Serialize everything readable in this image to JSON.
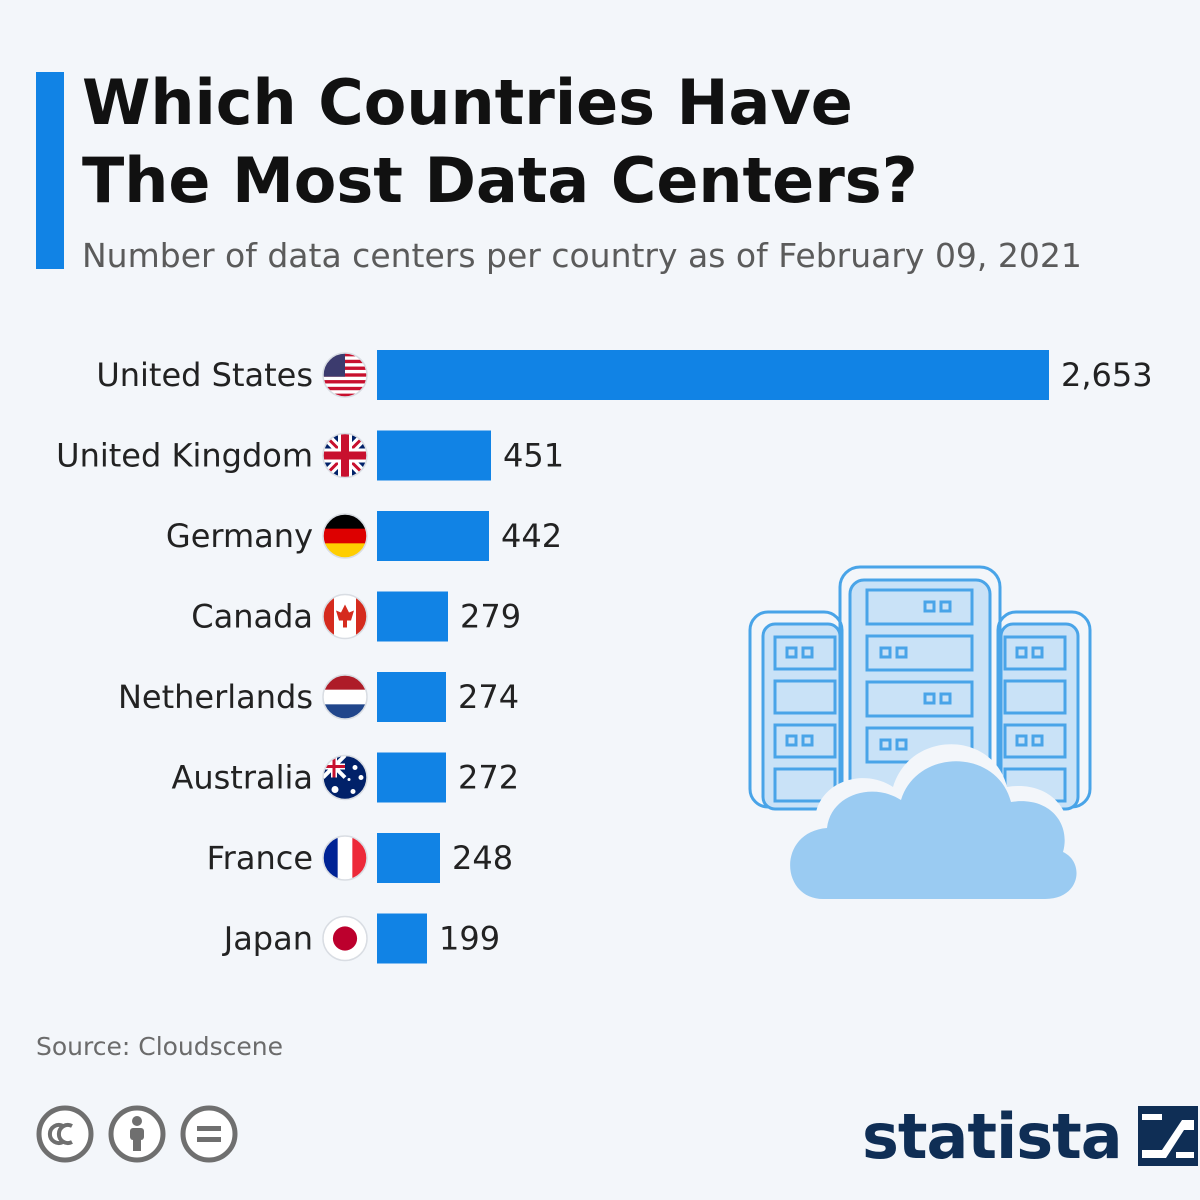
{
  "title": "Which Countries Have\nThe Most Data Centers?",
  "subtitle": "Number of data centers per country as of February 09, 2021",
  "colors": {
    "accent": "#1183e5",
    "bar": "#1183e5",
    "brand": "#0f2e55",
    "illustration_outline": "#49a4e8",
    "illustration_fill": "#c9e2f7",
    "cloud": "#9acbf2"
  },
  "chart_data": {
    "type": "bar",
    "orientation": "horizontal",
    "categories": [
      "United States",
      "United Kingdom",
      "Germany",
      "Canada",
      "Netherlands",
      "Australia",
      "France",
      "Japan"
    ],
    "values": [
      2653,
      451,
      442,
      279,
      274,
      272,
      248,
      199
    ],
    "value_labels": [
      "2,653",
      "451",
      "442",
      "279",
      "274",
      "272",
      "248",
      "199"
    ],
    "flag_icons": [
      "flag-us-icon",
      "flag-uk-icon",
      "flag-germany-icon",
      "flag-canada-icon",
      "flag-netherlands-icon",
      "flag-australia-icon",
      "flag-france-icon",
      "flag-japan-icon"
    ],
    "title": "Which Countries Have The Most Data Centers?",
    "subtitle": "Number of data centers per country as of February 09, 2021",
    "xlabel": "",
    "ylabel": "",
    "xlim": [
      0,
      2653
    ],
    "grid": false,
    "legend": "none"
  },
  "source": "Source: Cloudscene",
  "license_icons": [
    "cc-icon",
    "attribution-icon",
    "no-derivatives-icon"
  ],
  "brand": "statista",
  "illustration": "server-cloud-icon"
}
